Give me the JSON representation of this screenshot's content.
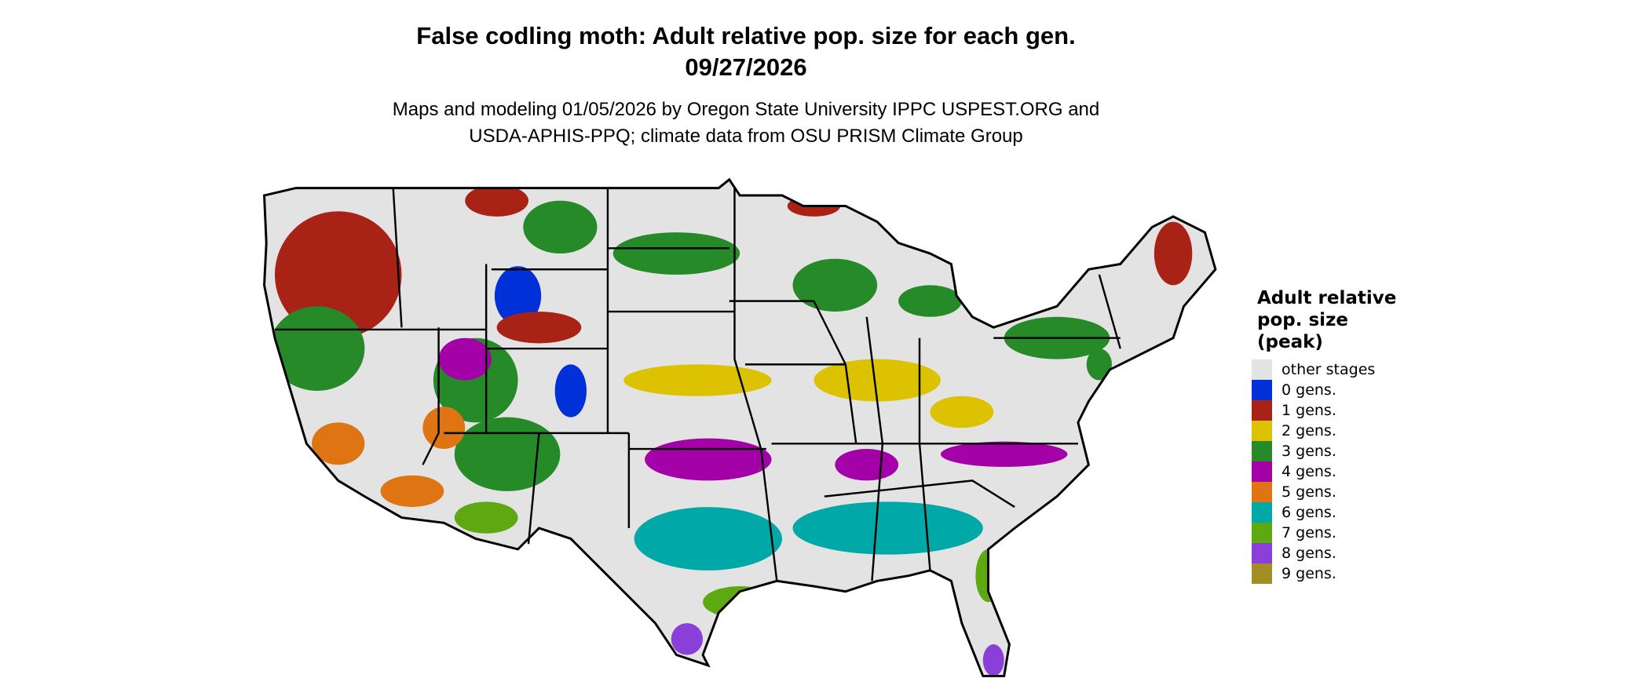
{
  "title": "False codling moth: Adult relative pop. size for each gen.",
  "date": "09/27/2026",
  "subtitle_line1": "Maps and modeling 01/05/2026 by Oregon State University IPPC USPEST.ORG and",
  "subtitle_line2": "USDA-APHIS-PPQ; climate data from OSU PRISM Climate Group",
  "legend": {
    "title_lines": [
      "Adult relative",
      "pop. size",
      "(peak)"
    ],
    "items": [
      {
        "label": "other stages",
        "color": "#e3e3e3"
      },
      {
        "label": "0 gens.",
        "color": "#0030d8"
      },
      {
        "label": "1 gens.",
        "color": "#a82216"
      },
      {
        "label": "2 gens.",
        "color": "#dcc200"
      },
      {
        "label": "3 gens.",
        "color": "#268a28"
      },
      {
        "label": "4 gens.",
        "color": "#a400a8"
      },
      {
        "label": "5 gens.",
        "color": "#de7512"
      },
      {
        "label": "6 gens.",
        "color": "#00a8a8"
      },
      {
        "label": "7 gens.",
        "color": "#5ea812"
      },
      {
        "label": "8 gens.",
        "color": "#8a40d8"
      },
      {
        "label": "9 gens.",
        "color": "#a38e26"
      }
    ]
  }
}
